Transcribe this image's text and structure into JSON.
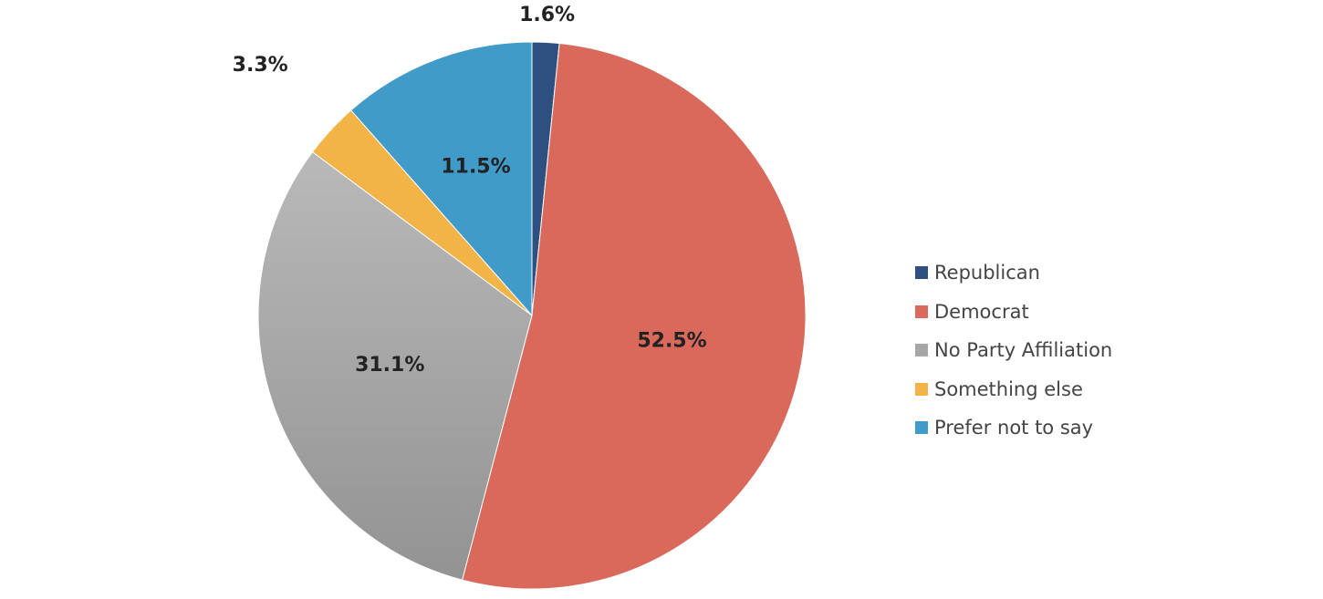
{
  "chart_data": {
    "type": "pie",
    "title": "",
    "start_angle_deg": 0,
    "direction": "clockwise",
    "legend_position": "right",
    "slices": [
      {
        "name": "Republican",
        "value": 1.6,
        "label": "1.6%",
        "color": "#2d5080"
      },
      {
        "name": "Democrat",
        "value": 52.5,
        "label": "52.5%",
        "color": "#d9695b"
      },
      {
        "name": "No Party Affiliation",
        "value": 31.1,
        "label": "31.1%",
        "color": "#a6a6a6"
      },
      {
        "name": "Something else",
        "value": 3.3,
        "label": "3.3%",
        "color": "#f2b447"
      },
      {
        "name": "Prefer not to say",
        "value": 11.5,
        "label": "11.5%",
        "color": "#419bc9"
      }
    ]
  }
}
